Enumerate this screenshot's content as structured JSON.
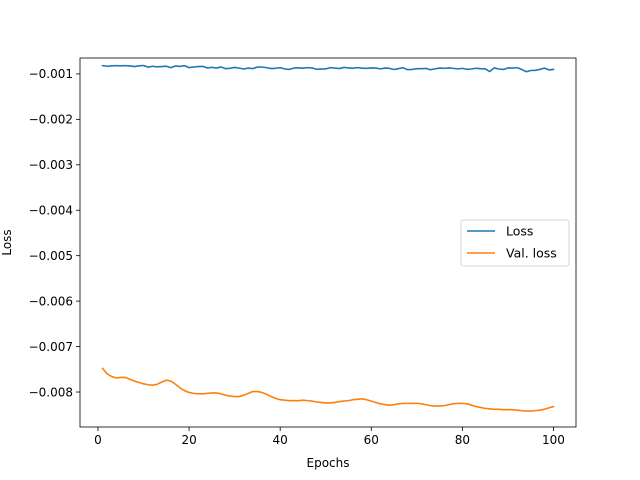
{
  "chart_data": {
    "type": "line",
    "title": "",
    "xlabel": "Epochs",
    "ylabel": "Loss",
    "xlim": [
      -3.95,
      104.95
    ],
    "ylim": [
      -0.00877,
      -0.00065
    ],
    "xticks": [
      0,
      20,
      40,
      60,
      80,
      100
    ],
    "xtick_labels": [
      "0",
      "20",
      "40",
      "60",
      "80",
      "100"
    ],
    "yticks": [
      -0.001,
      -0.002,
      -0.003,
      -0.004,
      -0.005,
      -0.006,
      -0.007,
      -0.008
    ],
    "ytick_labels": [
      "−0.001",
      "−0.002",
      "−0.003",
      "−0.004",
      "−0.005",
      "−0.006",
      "−0.007",
      "−0.008"
    ],
    "grid": false,
    "legend_position": "center-right",
    "x": [
      1,
      2,
      3,
      4,
      5,
      6,
      7,
      8,
      9,
      10,
      11,
      12,
      13,
      14,
      15,
      16,
      17,
      18,
      19,
      20,
      21,
      22,
      23,
      24,
      25,
      26,
      27,
      28,
      29,
      30,
      31,
      32,
      33,
      34,
      35,
      36,
      37,
      38,
      39,
      40,
      41,
      42,
      43,
      44,
      45,
      46,
      47,
      48,
      49,
      50,
      51,
      52,
      53,
      54,
      55,
      56,
      57,
      58,
      59,
      60,
      61,
      62,
      63,
      64,
      65,
      66,
      67,
      68,
      69,
      70,
      71,
      72,
      73,
      74,
      75,
      76,
      77,
      78,
      79,
      80,
      81,
      82,
      83,
      84,
      85,
      86,
      87,
      88,
      89,
      90,
      91,
      92,
      93,
      94,
      95,
      96,
      97,
      98,
      99,
      100
    ],
    "series": [
      {
        "name": "Loss",
        "color": "#1f77b4",
        "values": [
          -0.000818,
          -0.000832,
          -0.000822,
          -0.000818,
          -0.000821,
          -0.000818,
          -0.000825,
          -0.000838,
          -0.000822,
          -0.000815,
          -0.000852,
          -0.000832,
          -0.000845,
          -0.000838,
          -0.000831,
          -0.000862,
          -0.000825,
          -0.000836,
          -0.000818,
          -0.000861,
          -0.000848,
          -0.000838,
          -0.000835,
          -0.000868,
          -0.000856,
          -0.000872,
          -0.000849,
          -0.000885,
          -0.000876,
          -0.000858,
          -0.000873,
          -0.000892,
          -0.000872,
          -0.000884,
          -0.000848,
          -0.000851,
          -0.000862,
          -0.000882,
          -0.000876,
          -0.000862,
          -0.000892,
          -0.000901,
          -0.000872,
          -0.000866,
          -0.000875,
          -0.000862,
          -0.000868,
          -0.000898,
          -0.000894,
          -0.000889,
          -0.000862,
          -0.000871,
          -0.000882,
          -0.000858,
          -0.000868,
          -0.000874,
          -0.000862,
          -0.000875,
          -0.000878,
          -0.000868,
          -0.000872,
          -0.000889,
          -0.000872,
          -0.000878,
          -0.000903,
          -0.000882,
          -0.000866,
          -0.000908,
          -0.000901,
          -0.000884,
          -0.000886,
          -0.000879,
          -0.000908,
          -0.000889,
          -0.000872,
          -0.000878,
          -0.000869,
          -0.000878,
          -0.000889,
          -0.000878,
          -0.000898,
          -0.000892,
          -0.000876,
          -0.000885,
          -0.000889,
          -0.000948,
          -0.000868,
          -0.000892,
          -0.000902,
          -0.000869,
          -0.000872,
          -0.000862,
          -0.000899,
          -0.000952,
          -0.000925,
          -0.000921,
          -0.000902,
          -0.000872,
          -0.000912,
          -0.000901
        ]
      },
      {
        "name": "Val. loss",
        "color": "#ff7f0e",
        "values": [
          -0.00748,
          -0.0076,
          -0.00766,
          -0.00769,
          -0.00768,
          -0.00768,
          -0.00772,
          -0.00776,
          -0.00779,
          -0.00782,
          -0.00784,
          -0.00785,
          -0.00783,
          -0.00778,
          -0.00774,
          -0.00776,
          -0.00783,
          -0.00791,
          -0.00797,
          -0.00801,
          -0.00803,
          -0.00804,
          -0.00804,
          -0.00803,
          -0.00802,
          -0.00802,
          -0.00804,
          -0.00807,
          -0.00809,
          -0.0081,
          -0.0081,
          -0.00807,
          -0.00803,
          -0.00799,
          -0.00799,
          -0.00801,
          -0.00805,
          -0.0081,
          -0.00814,
          -0.00817,
          -0.00818,
          -0.00819,
          -0.00819,
          -0.00819,
          -0.00818,
          -0.00819,
          -0.0082,
          -0.00822,
          -0.00823,
          -0.00824,
          -0.00824,
          -0.00823,
          -0.00821,
          -0.0082,
          -0.00819,
          -0.00817,
          -0.00816,
          -0.00815,
          -0.00817,
          -0.0082,
          -0.00823,
          -0.00826,
          -0.00828,
          -0.00829,
          -0.00828,
          -0.00826,
          -0.00825,
          -0.00825,
          -0.00825,
          -0.00825,
          -0.00826,
          -0.00828,
          -0.0083,
          -0.00831,
          -0.00831,
          -0.0083,
          -0.00828,
          -0.00826,
          -0.00825,
          -0.00825,
          -0.00826,
          -0.00829,
          -0.00832,
          -0.00834,
          -0.00836,
          -0.00837,
          -0.00838,
          -0.00838,
          -0.00839,
          -0.00839,
          -0.00839,
          -0.0084,
          -0.00841,
          -0.00842,
          -0.00842,
          -0.00841,
          -0.0084,
          -0.00838,
          -0.00835,
          -0.00832
        ]
      }
    ]
  }
}
